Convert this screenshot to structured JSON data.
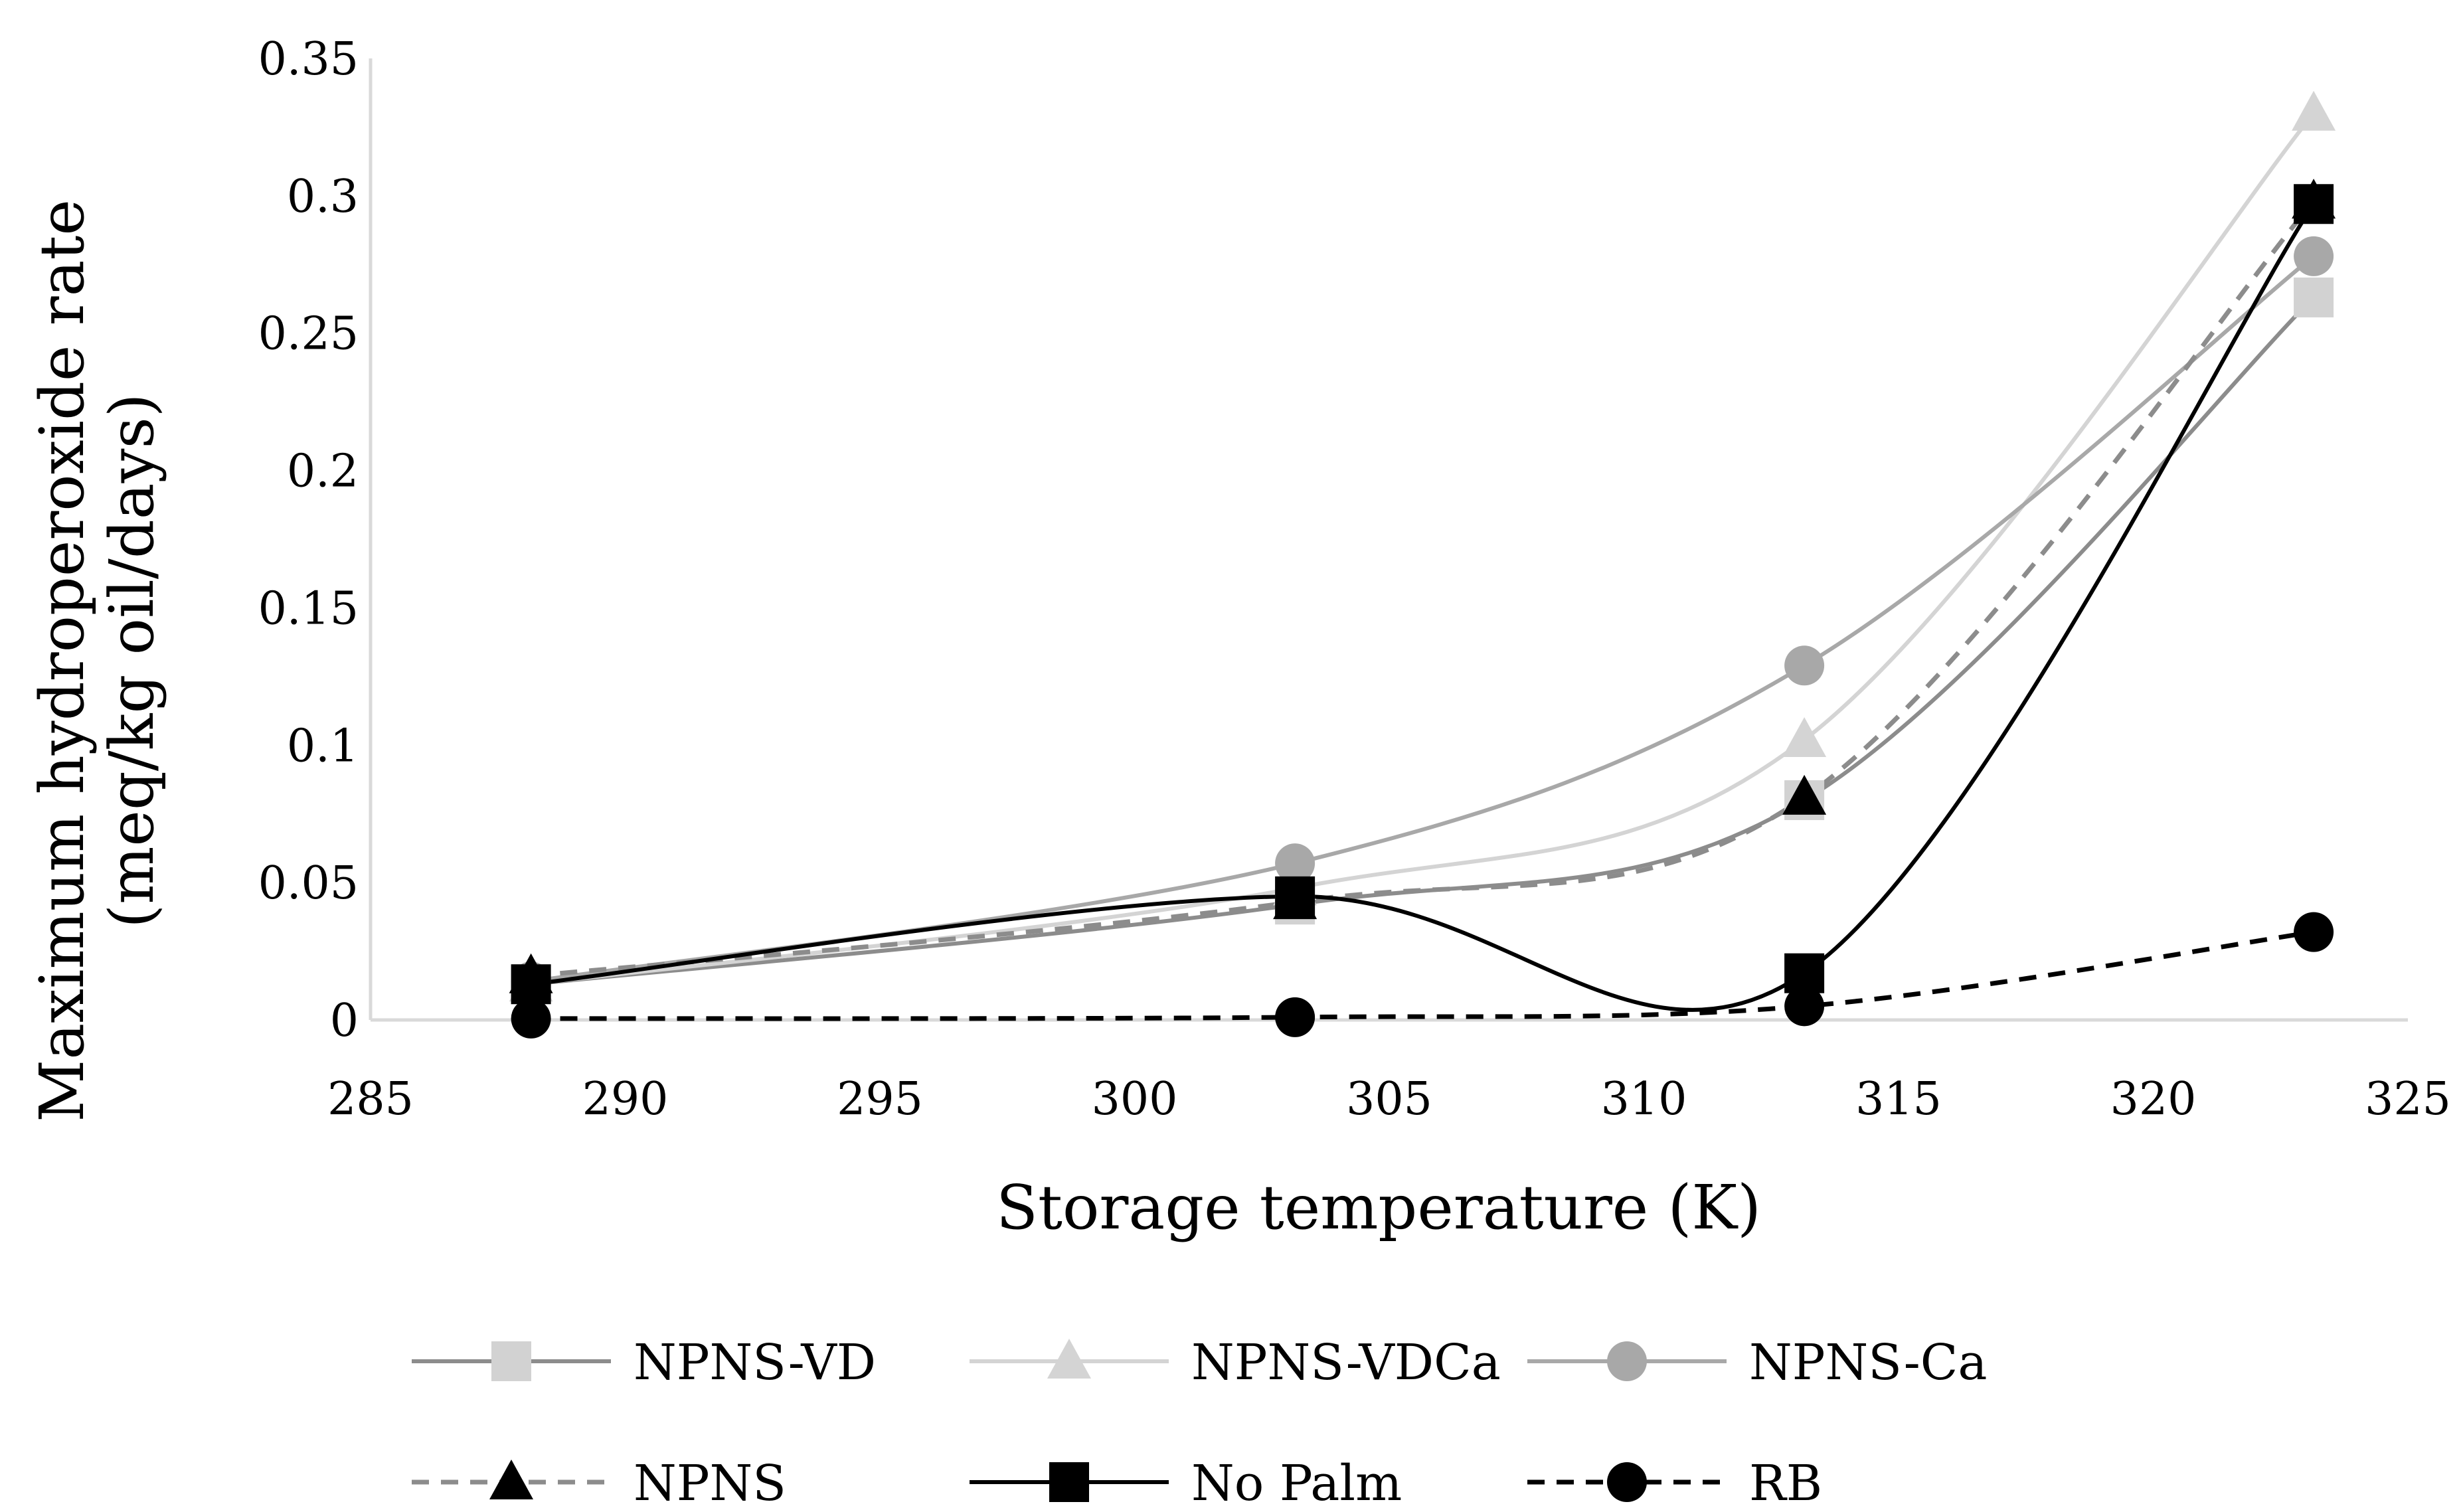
{
  "chart_data": {
    "type": "line",
    "title": "",
    "xlabel": "Storage temperature (K)",
    "ylabel": [
      "Maximum hydroperoxide rate",
      "(meq/kg oil/days)"
    ],
    "xlim": [
      285,
      325
    ],
    "ylim": [
      0,
      0.35
    ],
    "x_ticks": [
      285,
      290,
      295,
      300,
      305,
      310,
      315,
      320,
      325
    ],
    "y_ticks": [
      0,
      0.05,
      0.1,
      0.15,
      0.2,
      0.25,
      0.3,
      0.35
    ],
    "x_tick_labels": [
      "285",
      "290",
      "295",
      "300",
      "305",
      "310",
      "315",
      "320",
      "325"
    ],
    "y_tick_labels": [
      "0",
      "0.05",
      "0.1",
      "0.15",
      "0.2",
      "0.25",
      "0.3",
      "0.35"
    ],
    "x": [
      288.15,
      303.15,
      313.15,
      323.15
    ],
    "grid": false,
    "legend_position": "bottom",
    "series": [
      {
        "name": "NPNS-VD",
        "values": [
          0.013,
          0.042,
          0.08,
          0.263
        ],
        "color": "#8c8c8c",
        "marker_color": "#d2d2d2",
        "marker": "square",
        "dash": "solid"
      },
      {
        "name": "NPNS-VDCa",
        "values": [
          0.013,
          0.048,
          0.102,
          0.33
        ],
        "color": "#d4d4d4",
        "marker_color": "#d4d4d4",
        "marker": "triangle",
        "dash": "solid"
      },
      {
        "name": "NPNS-Ca",
        "values": [
          0.014,
          0.057,
          0.129,
          0.278
        ],
        "color": "#a8a8a8",
        "marker_color": "#a8a8a8",
        "marker": "circle",
        "dash": "solid"
      },
      {
        "name": "NPNS",
        "values": [
          0.016,
          0.043,
          0.081,
          0.298
        ],
        "color": "#8c8c8c",
        "marker_color": "#000000",
        "marker": "triangle",
        "dash": "dashed"
      },
      {
        "name": "No Palm",
        "values": [
          0.013,
          0.045,
          0.017,
          0.297
        ],
        "color": "#000000",
        "marker_color": "#000000",
        "marker": "square",
        "dash": "solid"
      },
      {
        "name": "RB",
        "values": [
          0.0005,
          0.001,
          0.005,
          0.032
        ],
        "color": "#000000",
        "marker_color": "#000000",
        "marker": "circle",
        "dash": "dashed"
      }
    ]
  }
}
